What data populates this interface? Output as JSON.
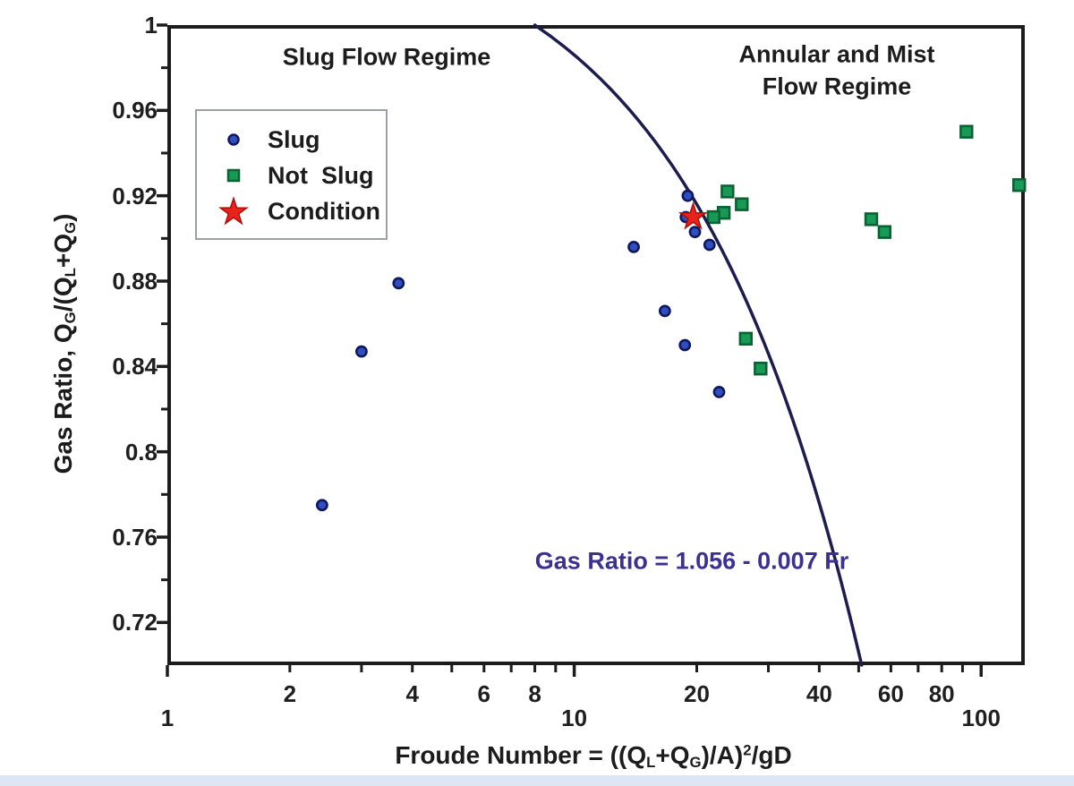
{
  "figure": {
    "background": "#ffffff",
    "bottom_strip_color": "#dce6f2",
    "plot_border_color": "#1c1c1c"
  },
  "chart_data": {
    "type": "scatter",
    "title": "",
    "x_scale": "log",
    "xlim": [
      1,
      128
    ],
    "ylim": [
      0.7,
      1.0
    ],
    "x_axis": {
      "title_segments": [
        {
          "t": "Froude Number = ((Q"
        },
        {
          "t": "L",
          "s": "sub"
        },
        {
          "t": "+Q"
        },
        {
          "t": "G",
          "s": "sub"
        },
        {
          "t": ")/A)"
        },
        {
          "t": "2",
          "s": "sup"
        },
        {
          "t": "/gD"
        }
      ],
      "major_ticks": [
        {
          "value": 1,
          "label": "1"
        },
        {
          "value": 10,
          "label": "10"
        },
        {
          "value": 100,
          "label": "100"
        }
      ],
      "minor_ticks": [
        {
          "value": 2,
          "label": "2"
        },
        {
          "value": 3,
          "label": ""
        },
        {
          "value": 4,
          "label": "4"
        },
        {
          "value": 5,
          "label": ""
        },
        {
          "value": 6,
          "label": "6"
        },
        {
          "value": 7,
          "label": ""
        },
        {
          "value": 8,
          "label": "8"
        },
        {
          "value": 9,
          "label": ""
        },
        {
          "value": 20,
          "label": "20"
        },
        {
          "value": 30,
          "label": ""
        },
        {
          "value": 40,
          "label": "40"
        },
        {
          "value": 50,
          "label": ""
        },
        {
          "value": 60,
          "label": "60"
        },
        {
          "value": 70,
          "label": ""
        },
        {
          "value": 80,
          "label": "80"
        },
        {
          "value": 90,
          "label": ""
        }
      ]
    },
    "y_axis": {
      "title_segments": [
        {
          "t": "Gas Ratio, Q"
        },
        {
          "t": "G",
          "s": "sub"
        },
        {
          "t": "/(Q"
        },
        {
          "t": "L",
          "s": "sub"
        },
        {
          "t": "+Q"
        },
        {
          "t": "G",
          "s": "sub"
        },
        {
          "t": ")"
        }
      ],
      "major_ticks": [
        {
          "value": 1.0,
          "label": "1"
        },
        {
          "value": 0.96,
          "label": "0.96"
        },
        {
          "value": 0.92,
          "label": "0.92"
        },
        {
          "value": 0.88,
          "label": "0.88"
        },
        {
          "value": 0.84,
          "label": "0.84"
        },
        {
          "value": 0.8,
          "label": "0.8"
        },
        {
          "value": 0.76,
          "label": "0.76"
        },
        {
          "value": 0.72,
          "label": "0.72"
        }
      ],
      "minor_ticks": [
        0.98,
        0.94,
        0.9,
        0.86,
        0.82,
        0.78,
        0.74
      ]
    },
    "series": [
      {
        "name": "Slug",
        "marker": "circle",
        "fill": "#2f4fc1",
        "stroke": "#10175e",
        "points": [
          [
            3.7,
            0.879
          ],
          [
            3.0,
            0.847
          ],
          [
            2.4,
            0.775
          ],
          [
            14.0,
            0.896
          ],
          [
            16.7,
            0.866
          ],
          [
            18.7,
            0.85
          ],
          [
            19.0,
            0.92
          ],
          [
            18.8,
            0.91
          ],
          [
            19.8,
            0.903
          ],
          [
            21.5,
            0.897
          ],
          [
            22.7,
            0.828
          ]
        ]
      },
      {
        "name": "Not Slug",
        "marker": "square",
        "fill": "#169a55",
        "stroke": "#0a6234",
        "points": [
          [
            23.8,
            0.922
          ],
          [
            25.8,
            0.916
          ],
          [
            23.3,
            0.912
          ],
          [
            22.0,
            0.91
          ],
          [
            26.4,
            0.853
          ],
          [
            28.7,
            0.839
          ],
          [
            53.7,
            0.909
          ],
          [
            57.9,
            0.903
          ],
          [
            92.0,
            0.95
          ],
          [
            124.0,
            0.925
          ]
        ]
      },
      {
        "name": "Condition",
        "marker": "star",
        "fill": "#e8231b",
        "stroke": "#b00c06",
        "points": [
          [
            19.6,
            0.91
          ]
        ]
      }
    ],
    "boundary_line": {
      "label": "Gas Ratio = 1.056 - 0.007 Fr",
      "intercept": 1.056,
      "slope_per_fr": -0.007,
      "color": "#1c1c4e"
    },
    "annotations": {
      "left_region": "Slug Flow Regime",
      "right_region_line1": "Annular and Mist",
      "right_region_line2": "Flow Regime",
      "equation": "Gas Ratio = 1.056 - 0.007 Fr",
      "equation_color": "#3a3193"
    },
    "legend": {
      "items": [
        {
          "label": "Slug",
          "marker": "circle",
          "color": "#2f4fc1",
          "border": "#10175e"
        },
        {
          "label": "Not  Slug",
          "marker": "square",
          "color": "#169a55",
          "border": "#0a6234"
        },
        {
          "label": "Condition",
          "marker": "star",
          "color": "#e8231b",
          "border": "#b00c06"
        }
      ]
    }
  }
}
